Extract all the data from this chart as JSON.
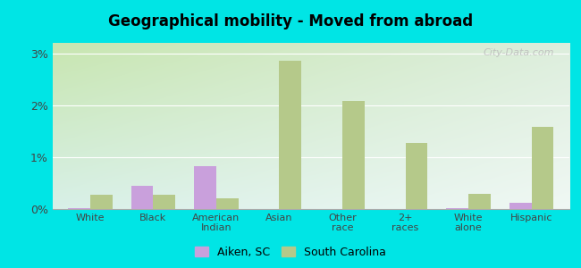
{
  "title": "Geographical mobility - Moved from abroad",
  "categories": [
    "White",
    "Black",
    "American\nIndian",
    "Asian",
    "Other\nrace",
    "2+\nraces",
    "White\nalone",
    "Hispanic"
  ],
  "aiken_values": [
    0.02,
    0.45,
    0.82,
    0.0,
    0.0,
    0.0,
    0.02,
    0.12
  ],
  "sc_values": [
    0.28,
    0.28,
    0.2,
    2.85,
    2.08,
    1.28,
    0.3,
    1.58
  ],
  "aiken_color": "#c9a0dc",
  "sc_color": "#b5c98a",
  "background_color": "#00e5e5",
  "plot_bg_topleft": "#d4e8c2",
  "plot_bg_topright": "#e8f0e0",
  "plot_bg_bottomleft": "#e0f5f0",
  "plot_bg_bottomright": "#f5faf8",
  "ylim": [
    0,
    3.2
  ],
  "yticks": [
    0,
    1,
    2,
    3
  ],
  "ytick_labels": [
    "0%",
    "1%",
    "2%",
    "3%"
  ],
  "bar_width": 0.35,
  "legend_aiken": "Aiken, SC",
  "legend_sc": "South Carolina",
  "watermark": "City-Data.com"
}
